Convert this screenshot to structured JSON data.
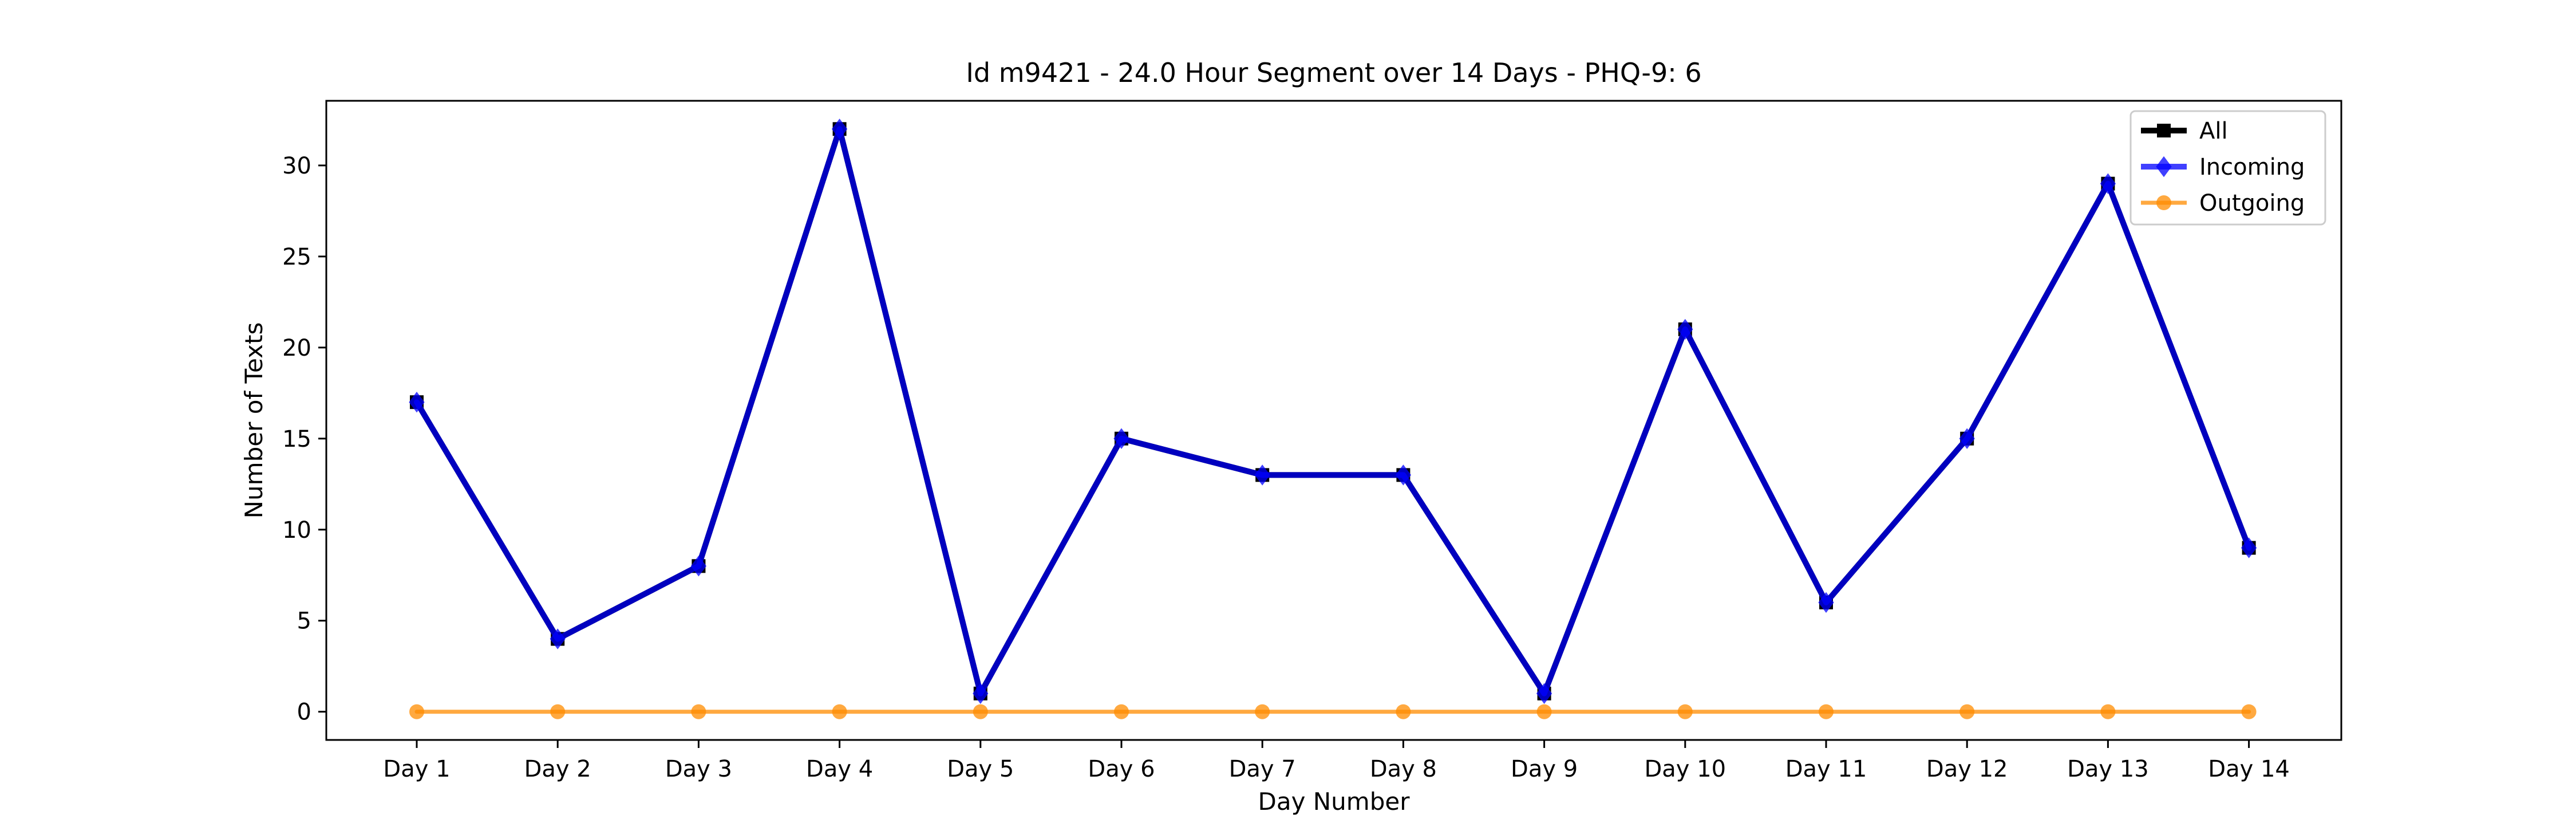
{
  "chart_data": {
    "type": "line",
    "title": "Id m9421 - 24.0 Hour Segment over 14 Days - PHQ-9: 6",
    "xlabel": "Day Number",
    "ylabel": "Number of Texts",
    "categories": [
      "Day 1",
      "Day 2",
      "Day 3",
      "Day 4",
      "Day 5",
      "Day 6",
      "Day 7",
      "Day 8",
      "Day 9",
      "Day 10",
      "Day 11",
      "Day 12",
      "Day 13",
      "Day 14"
    ],
    "ylim": [
      -1.55,
      33.55
    ],
    "yticks": [
      0,
      5,
      10,
      15,
      20,
      25,
      30
    ],
    "grid": false,
    "legend_position": "top-right",
    "series": [
      {
        "name": "All",
        "values": [
          17,
          4,
          8,
          32,
          1,
          15,
          13,
          13,
          1,
          21,
          6,
          15,
          29,
          9
        ],
        "color": "#000000",
        "marker": "square",
        "alpha": 1.0
      },
      {
        "name": "Incoming",
        "values": [
          17,
          4,
          8,
          32,
          1,
          15,
          13,
          13,
          1,
          21,
          6,
          15,
          29,
          9
        ],
        "color": "#0000ff",
        "marker": "diamond",
        "alpha": 0.75
      },
      {
        "name": "Outgoing",
        "values": [
          0,
          0,
          0,
          0,
          0,
          0,
          0,
          0,
          0,
          0,
          0,
          0,
          0,
          0
        ],
        "color": "#ff8c00",
        "marker": "circle",
        "alpha": 0.75
      }
    ]
  }
}
